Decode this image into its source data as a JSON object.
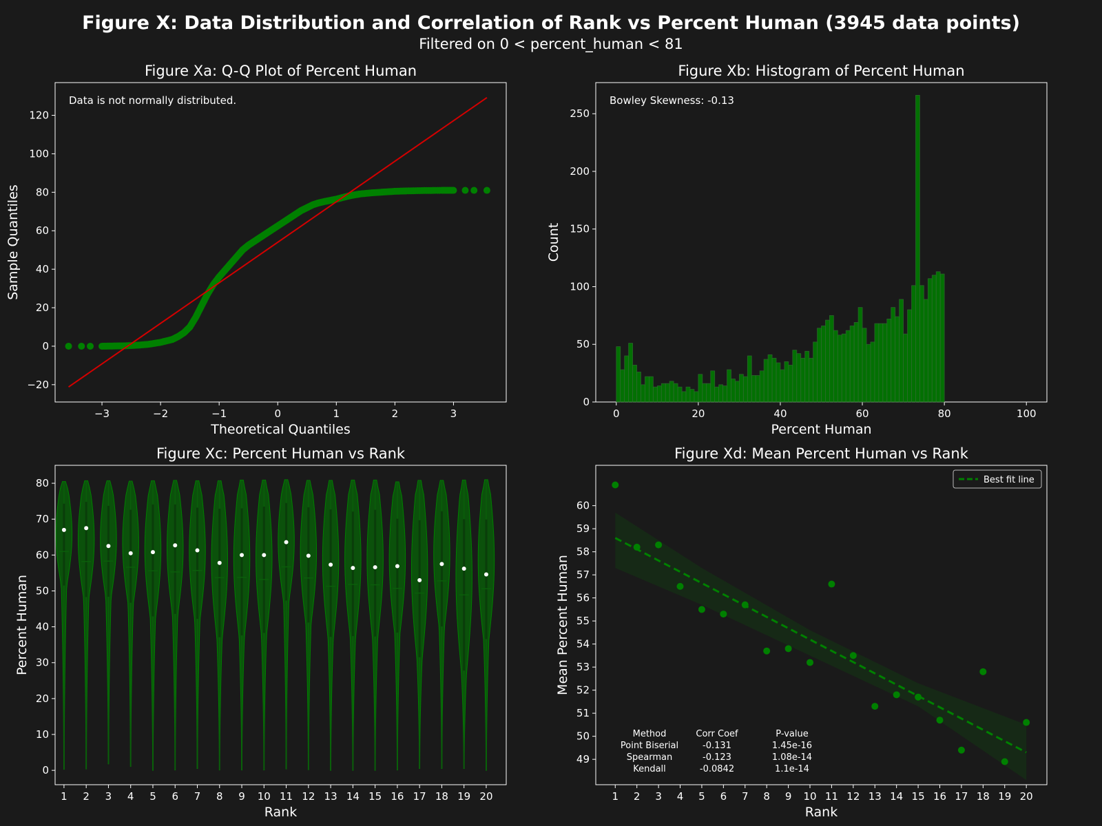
{
  "figure": {
    "title": "Figure X: Data Distribution and Correlation of Rank vs Percent Human (3945 data points)",
    "subtitle": "Filtered on 0 < percent_human < 81"
  },
  "colors": {
    "background": "#1a1a1a",
    "green": "#008000",
    "green_dark": "#0b5e0b",
    "red": "#d40000",
    "white": "#ffffff"
  },
  "chart_data": [
    {
      "id": "qq",
      "type": "scatter",
      "title": "Figure Xa: Q-Q Plot of Percent Human",
      "xlabel": "Theoretical Quantiles",
      "ylabel": "Sample Quantiles",
      "annotation": "Data is not normally distributed.",
      "xlim": [
        -3.8,
        3.9
      ],
      "ylim": [
        -29,
        137
      ],
      "xticks": [
        -3,
        -2,
        -1,
        0,
        1,
        2,
        3
      ],
      "xtick_labels": [
        "−3",
        "−2",
        "−1",
        "0",
        "1",
        "2",
        "3"
      ],
      "yticks": [
        -20,
        0,
        20,
        40,
        60,
        80,
        100,
        120
      ],
      "ytick_labels": [
        "−20",
        "0",
        "20",
        "40",
        "60",
        "80",
        "100",
        "120"
      ],
      "reference_line": {
        "x": [
          -3.57,
          3.57
        ],
        "y": [
          -21.2,
          129.2
        ]
      },
      "curve": {
        "x": [
          -3.57,
          -3.35,
          -3.2,
          -3.0,
          -2.8,
          -2.6,
          -2.4,
          -2.2,
          -2.0,
          -1.8,
          -1.7,
          -1.6,
          -1.5,
          -1.4,
          -1.3,
          -1.2,
          -1.1,
          -1.0,
          -0.9,
          -0.8,
          -0.7,
          -0.6,
          -0.5,
          -0.4,
          -0.3,
          -0.2,
          -0.1,
          0.0,
          0.1,
          0.2,
          0.3,
          0.4,
          0.5,
          0.6,
          0.7,
          0.8,
          0.9,
          1.0,
          1.1,
          1.2,
          1.3,
          1.4,
          1.6,
          1.8,
          2.0,
          2.2,
          2.5,
          2.8,
          3.0,
          3.2,
          3.35,
          3.57
        ],
        "y": [
          0,
          0,
          0,
          0,
          0.1,
          0.2,
          0.5,
          1,
          2,
          3.5,
          5,
          7,
          10,
          15,
          21,
          27,
          32,
          36,
          39.5,
          43,
          46.5,
          50,
          52.5,
          54.5,
          56.5,
          58.5,
          60.5,
          62.5,
          64.5,
          66.5,
          68.5,
          70.5,
          72,
          73.5,
          74.5,
          75.2,
          75.8,
          76.4,
          77.2,
          78,
          78.6,
          79.1,
          79.7,
          80.1,
          80.5,
          80.7,
          80.9,
          81,
          81,
          81,
          81,
          81
        ]
      }
    },
    {
      "id": "hist",
      "type": "bar",
      "title": "Figure Xb: Histogram of Percent Human",
      "xlabel": "Percent Human",
      "ylabel": "Count",
      "annotation": "Bowley Skewness: -0.13",
      "xlim": [
        -5,
        105
      ],
      "ylim": [
        0,
        277
      ],
      "xticks": [
        0,
        20,
        40,
        60,
        80,
        100
      ],
      "yticks": [
        0,
        50,
        100,
        150,
        200,
        250
      ],
      "bin_width": 1,
      "bin_start": 0,
      "values": [
        48,
        28,
        40,
        51,
        32,
        26,
        15,
        22,
        22,
        13,
        14,
        16,
        16,
        18,
        16,
        13,
        9,
        13,
        11,
        9,
        24,
        16,
        16,
        27,
        13,
        15,
        14,
        28,
        20,
        18,
        24,
        22,
        40,
        23,
        23,
        27,
        37,
        41,
        38,
        34,
        28,
        35,
        32,
        45,
        42,
        38,
        44,
        38,
        52,
        64,
        66,
        71,
        75,
        62,
        58,
        59,
        62,
        66,
        69,
        82,
        64,
        50,
        52,
        68,
        68,
        68,
        72,
        82,
        74,
        89,
        59,
        80,
        101,
        266,
        101,
        89,
        107,
        110,
        113,
        111
      ]
    },
    {
      "id": "violin",
      "type": "violin",
      "title": "Figure Xc: Percent Human vs Rank",
      "xlabel": "Rank",
      "ylabel": "Percent Human",
      "xlim": [
        -0.4,
        19.9
      ],
      "ylim": [
        -4,
        85
      ],
      "categories": [
        "1",
        "2",
        "3",
        "4",
        "5",
        "6",
        "7",
        "8",
        "9",
        "10",
        "11",
        "12",
        "13",
        "14",
        "15",
        "16",
        "17",
        "18",
        "19",
        "20"
      ],
      "yticks": [
        0,
        10,
        20,
        30,
        40,
        50,
        60,
        70,
        80
      ],
      "means": [
        67,
        67.5,
        62.5,
        60.5,
        60.8,
        62.7,
        61.3,
        57.8,
        60,
        60,
        63.6,
        59.8,
        57.3,
        56.4,
        56.6,
        56.9,
        53,
        57.5,
        56.2,
        54.6
      ],
      "medians": [
        61,
        58.2,
        58.3,
        56.6,
        55.6,
        55.3,
        55.7,
        53.7,
        53.8,
        53.2,
        56.7,
        53.6,
        51.3,
        51.8,
        51.7,
        50.7,
        49.4,
        52.8,
        48.9,
        50.6
      ],
      "mins": [
        0.3,
        0.4,
        1.8,
        1.1,
        0,
        0.1,
        0.5,
        0.1,
        0.1,
        0.1,
        0.4,
        0.2,
        0,
        0,
        0,
        0.1,
        0.5,
        0.5,
        0.5,
        0
      ],
      "maxs": [
        80.5,
        80.7,
        80.7,
        80.6,
        80.7,
        80.8,
        80.7,
        80.7,
        80.9,
        80.9,
        81,
        80.8,
        80.8,
        80.9,
        80.9,
        80.4,
        80.8,
        80.8,
        80.9,
        81
      ],
      "q1": [
        51.5,
        48.3,
        48.4,
        46.7,
        42.9,
        43.6,
        42.2,
        37.1,
        37.6,
        38.3,
        47.3,
        41.2,
        37.2,
        37.4,
        37.3,
        38.4,
        31.5,
        40.1,
        27.8,
        36.6
      ],
      "q3": [
        74.3,
        74.8,
        73.7,
        72.6,
        74.1,
        74.1,
        73.2,
        72.9,
        73,
        73.5,
        74.5,
        73.3,
        72.7,
        72.1,
        72.6,
        70.1,
        69.7,
        72.2,
        70,
        69.9
      ]
    },
    {
      "id": "mean",
      "type": "scatter",
      "title": "Figure Xd: Mean Percent Human vs Rank",
      "xlabel": "Rank",
      "ylabel": "Mean Percent Human",
      "xlim": [
        0.1,
        20.95
      ],
      "ylim": [
        47.9,
        61.75
      ],
      "xticks": [
        1,
        2,
        3,
        4,
        5,
        6,
        7,
        8,
        9,
        10,
        11,
        12,
        13,
        14,
        15,
        16,
        17,
        18,
        19,
        20
      ],
      "yticks": [
        49,
        50,
        51,
        52,
        53,
        54,
        55,
        56,
        57,
        58,
        59,
        60
      ],
      "x": [
        1,
        2,
        3,
        4,
        5,
        6,
        7,
        8,
        9,
        10,
        11,
        12,
        13,
        14,
        15,
        16,
        17,
        18,
        19,
        20
      ],
      "y": [
        60.9,
        58.2,
        58.3,
        56.5,
        55.5,
        55.3,
        55.7,
        53.7,
        53.8,
        53.2,
        56.6,
        53.5,
        51.3,
        51.8,
        51.7,
        50.7,
        49.4,
        52.8,
        48.9,
        50.6
      ],
      "fit": {
        "x": [
          1,
          20
        ],
        "y": [
          58.6,
          49.3
        ]
      },
      "ci_upper": {
        "x": [
          1,
          5,
          10,
          15,
          20
        ],
        "y": [
          59.7,
          57.3,
          54.6,
          52.3,
          50.5
        ]
      },
      "ci_lower": {
        "x": [
          1,
          5,
          10,
          15,
          20
        ],
        "y": [
          57.3,
          55.7,
          53.5,
          51.3,
          48.1
        ]
      },
      "legend": "Best fit line",
      "legend_position": "upper right",
      "table": {
        "headers": [
          "Method",
          "Corr Coef",
          "P-value"
        ],
        "rows": [
          [
            "Point Biserial",
            "-0.131",
            "1.45e-16"
          ],
          [
            "Spearman",
            "-0.123",
            "1.08e-14"
          ],
          [
            "Kendall",
            "-0.0842",
            "1.1e-14"
          ]
        ]
      }
    }
  ]
}
